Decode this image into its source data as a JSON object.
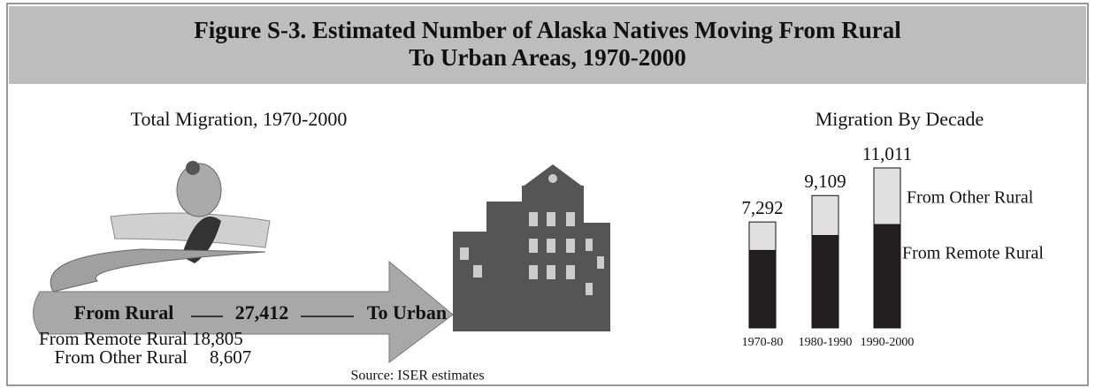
{
  "figure_title": [
    "Figure S-3. Estimated Number of Alaska Natives Moving From Rural",
    "To Urban Areas, 1970-2000"
  ],
  "infographic": {
    "title": "Total Migration, 1970-2000",
    "from_label": "From Rural",
    "total": "27,412",
    "to_label": "To Urban",
    "breakdown": [
      {
        "name": "From Remote Rural",
        "value": "18,805"
      },
      {
        "name": "From Other Rural",
        "value": "8,607"
      }
    ]
  },
  "source": "Source: ISER estimates",
  "chart_data": {
    "type": "stacked_bar",
    "title": "Migration By Decade",
    "categories": [
      "1970-80",
      "1980-1990",
      "1990-2000"
    ],
    "series": [
      {
        "name": "From Remote Rural",
        "color": "#231f20",
        "values": [
          5330,
          6360,
          7115
        ]
      },
      {
        "name": "From Other Rural",
        "color": "#e0e0e0",
        "values": [
          1962,
          2749,
          3896
        ]
      }
    ],
    "totals": [
      7292,
      9109,
      11011
    ],
    "total_labels": [
      "7,292",
      "9,109",
      "11,011"
    ]
  }
}
